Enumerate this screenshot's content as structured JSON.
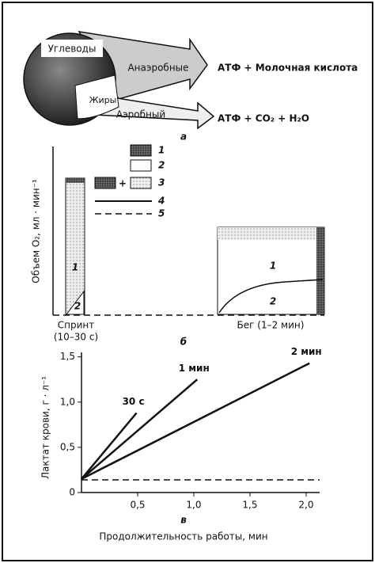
{
  "diagram_a": {
    "source": "Углеводы",
    "fat": "Жиры",
    "anaerobic": "Анаэробные",
    "aerobic": "Аэробный",
    "product_anaerobic": "АТФ + Молочная кислота",
    "product_aerobic": "АТФ + CO₂ + H₂O",
    "panel_label": "а"
  },
  "diagram_b": {
    "y_label": "Объем O₂, мл · мин⁻¹",
    "legend": [
      "1",
      "2",
      "3",
      "4",
      "5"
    ],
    "plus": "+",
    "sprint_label": [
      "Спринт",
      "(10–30 с)"
    ],
    "run_label": "Бег (1–2 мин)",
    "sprint_parts": [
      "1",
      "2"
    ],
    "run_parts": [
      "1",
      "2"
    ],
    "panel_label": "б"
  },
  "chart_data": {
    "type": "line",
    "panel_label": "в",
    "x_label": "Продолжительность работы, мин",
    "y_label": "Лактат крови, г · л⁻¹",
    "xlim": [
      0,
      2.12
    ],
    "ylim": [
      0,
      1.55
    ],
    "xticks": [
      {
        "value": 0.5,
        "label": "0,5"
      },
      {
        "value": 1.0,
        "label": "1,0"
      },
      {
        "value": 1.5,
        "label": "1,5"
      },
      {
        "value": 2.0,
        "label": "2,0"
      }
    ],
    "yticks": [
      0,
      {
        "value": 0.5,
        "label": "0,5"
      },
      {
        "value": 1.0,
        "label": "1,0"
      },
      {
        "value": 1.5,
        "label": "1,5"
      }
    ],
    "series": [
      {
        "name": "30 с",
        "color": "#111111",
        "x": [
          0,
          0.49
        ],
        "values": [
          0.15,
          0.88
        ]
      },
      {
        "name": "1 мин",
        "color": "#111111",
        "x": [
          0,
          1.03
        ],
        "values": [
          0.15,
          1.25
        ]
      },
      {
        "name": "2 мин",
        "color": "#111111",
        "x": [
          0,
          2.03
        ],
        "values": [
          0.15,
          1.43
        ]
      }
    ],
    "hline": 0.14
  }
}
